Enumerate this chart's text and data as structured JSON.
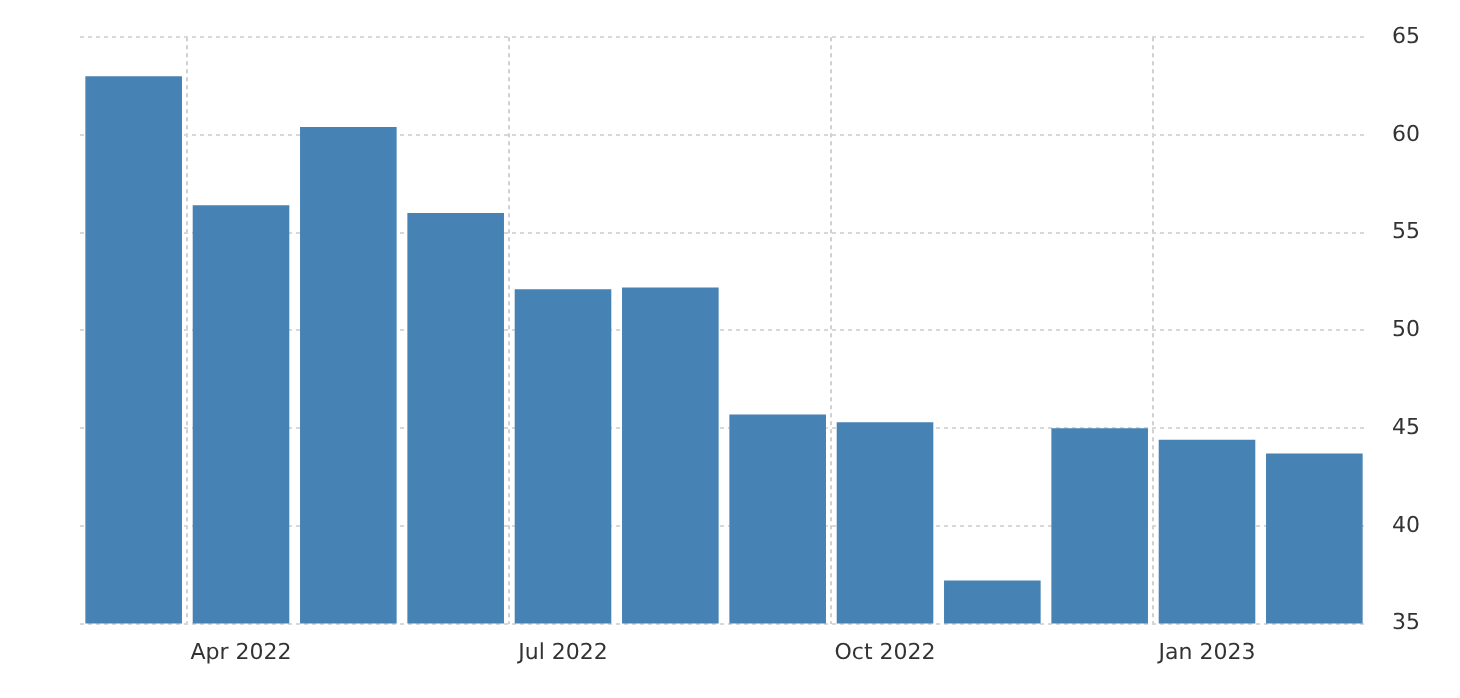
{
  "chart_data": {
    "type": "bar",
    "categories": [
      null,
      "Apr 2022",
      null,
      null,
      "Jul 2022",
      null,
      null,
      "Oct 2022",
      null,
      null,
      "Jan 2023",
      null
    ],
    "values": [
      63.0,
      56.4,
      60.4,
      56.0,
      52.1,
      52.2,
      45.7,
      45.3,
      37.2,
      45.0,
      44.4,
      43.7
    ],
    "color": "#4682b4",
    "ylim": [
      35,
      65
    ],
    "yticks": [
      35,
      40,
      45,
      50,
      55,
      60,
      65
    ],
    "grid": true
  }
}
